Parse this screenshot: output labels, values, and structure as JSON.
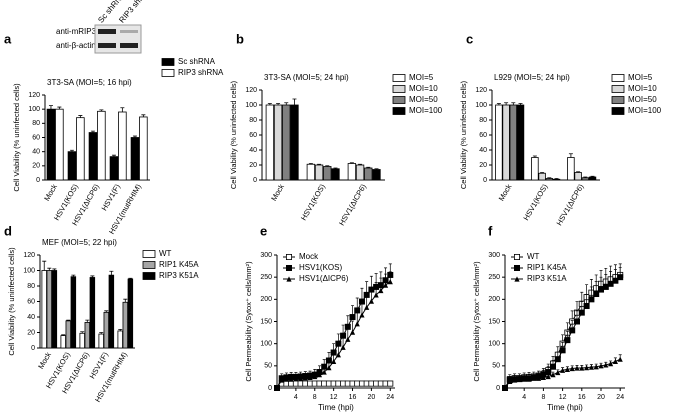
{
  "chart_data": [
    {
      "type": "bar",
      "label": "a",
      "annotation": "3T3-SA (MOI=5; 16 hpi)",
      "ylabel": "Cell Viability (% uninfected cells)",
      "blot": {
        "lanes": [
          "Sc shRNA",
          "RIP3 shRNA"
        ],
        "rows": [
          "anti-mRIP3",
          "anti-β-actin"
        ]
      },
      "categories": [
        "Mock",
        "HSV1(KOS)",
        "HSV1(ΔICP6)",
        "HSV1(F)",
        "HSV1(mutRHIM)"
      ],
      "series": [
        {
          "name": "Sc shRNA",
          "color": "#000000",
          "values": [
            100,
            40,
            67,
            33,
            60
          ],
          "errors": [
            5,
            2,
            2,
            2,
            2
          ]
        },
        {
          "name": "RIP3 shRNA",
          "color": "#ffffff",
          "values": [
            100,
            88,
            97,
            96,
            89
          ],
          "errors": [
            3,
            3,
            2,
            6,
            3
          ]
        }
      ],
      "ylim": [
        0,
        120
      ],
      "yticks": [
        0,
        20,
        40,
        60,
        80,
        100,
        120
      ],
      "legend": "right"
    },
    {
      "type": "bar",
      "label": "b",
      "annotation": "3T3-SA (MOI=5; 24 hpi)",
      "ylabel": "Cell Viability (% uninfected cells)",
      "categories": [
        "Mock",
        "HSV1(KOS)",
        "HSV1(ΔICP6)"
      ],
      "series": [
        {
          "name": "MOI=5",
          "color": "#ffffff",
          "values": [
            100,
            21,
            22
          ],
          "errors": [
            2,
            1,
            1
          ]
        },
        {
          "name": "MOI=10",
          "color": "#d9d9d9",
          "values": [
            100,
            20,
            20
          ],
          "errors": [
            2,
            1,
            1
          ]
        },
        {
          "name": "MOI=50",
          "color": "#808080",
          "values": [
            100,
            18,
            16
          ],
          "errors": [
            3,
            1,
            1
          ]
        },
        {
          "name": "MOI=100",
          "color": "#000000",
          "values": [
            100,
            15,
            14
          ],
          "errors": [
            8,
            1,
            1
          ]
        }
      ],
      "ylim": [
        0,
        120
      ],
      "yticks": [
        0,
        20,
        40,
        60,
        80,
        100,
        120
      ],
      "legend": "right"
    },
    {
      "type": "bar",
      "label": "c",
      "annotation": "L929 (MOI=5; 24 hpi)",
      "ylabel": "Cell Viability (% uninfected cells)",
      "categories": [
        "Mock",
        "HSV1(KOS)",
        "HSV1(ΔICP6)"
      ],
      "series": [
        {
          "name": "MOI=5",
          "color": "#ffffff",
          "values": [
            100,
            30,
            30
          ],
          "errors": [
            2,
            2,
            5
          ]
        },
        {
          "name": "MOI=10",
          "color": "#d9d9d9",
          "values": [
            100,
            9,
            10
          ],
          "errors": [
            3,
            1,
            1
          ]
        },
        {
          "name": "MOI=50",
          "color": "#808080",
          "values": [
            100,
            2,
            3
          ],
          "errors": [
            3,
            1,
            1
          ]
        },
        {
          "name": "MOI=100",
          "color": "#000000",
          "values": [
            100,
            1,
            4
          ],
          "errors": [
            2,
            1,
            1
          ]
        }
      ],
      "ylim": [
        0,
        120
      ],
      "yticks": [
        0,
        20,
        40,
        60,
        80,
        100,
        120
      ],
      "legend": "right"
    },
    {
      "type": "bar",
      "label": "d",
      "annotation": "MEF (MOI=5; 22 hpi)",
      "ylabel": "Cell Viability (% uninfected cells)",
      "categories": [
        "Mock",
        "HSV1(KOS)",
        "HSV1(ΔICP6)",
        "HSV1(F)",
        "HSV1(mutRHIM)"
      ],
      "series": [
        {
          "name": "WT",
          "color": "#ffffff",
          "values": [
            100,
            16,
            19,
            18,
            22
          ],
          "errors": [
            12,
            1,
            2,
            2,
            2
          ]
        },
        {
          "name": "RIP1 K45A",
          "color": "#a6a6a6",
          "values": [
            100,
            35,
            33,
            46,
            59
          ],
          "errors": [
            3,
            1,
            3,
            2,
            4
          ]
        },
        {
          "name": "RIP3 K51A",
          "color": "#000000",
          "values": [
            100,
            92,
            91,
            94,
            89
          ],
          "errors": [
            2,
            2,
            2,
            5,
            1
          ]
        }
      ],
      "ylim": [
        0,
        120
      ],
      "yticks": [
        0,
        20,
        40,
        60,
        80,
        100,
        120
      ],
      "legend": "right"
    },
    {
      "type": "line",
      "label": "e",
      "ylabel": "Cell Permeability (Sytox⁺ cells/mm²)",
      "xlabel": "Time (hpi)",
      "x": [
        0,
        1,
        2,
        3,
        4,
        5,
        6,
        7,
        8,
        9,
        10,
        11,
        12,
        13,
        14,
        15,
        16,
        17,
        18,
        19,
        20,
        21,
        22,
        23,
        24
      ],
      "series": [
        {
          "name": "Mock",
          "color": "#000000",
          "marker": "square-open",
          "values": [
            0,
            10,
            10,
            10,
            10,
            10,
            10,
            10,
            10,
            10,
            10,
            10,
            10,
            10,
            10,
            10,
            10,
            10,
            10,
            10,
            10,
            10,
            10,
            10,
            10
          ],
          "errors": [
            0,
            5,
            5,
            5,
            5,
            5,
            5,
            5,
            5,
            5,
            5,
            5,
            5,
            5,
            5,
            5,
            5,
            5,
            5,
            5,
            5,
            5,
            5,
            5,
            5
          ]
        },
        {
          "name": "HSV1(KOS)",
          "color": "#000000",
          "marker": "square",
          "values": [
            0,
            22,
            24,
            25,
            25,
            26,
            27,
            28,
            30,
            36,
            48,
            62,
            80,
            100,
            118,
            138,
            160,
            175,
            195,
            210,
            222,
            228,
            232,
            243,
            255
          ],
          "errors": [
            0,
            10,
            10,
            10,
            10,
            10,
            10,
            10,
            12,
            14,
            16,
            18,
            20,
            22,
            24,
            25,
            26,
            28,
            30,
            30,
            30,
            30,
            30,
            28,
            25
          ]
        },
        {
          "name": "HSV1(ΔICP6)",
          "color": "#000000",
          "marker": "triangle",
          "values": [
            0,
            18,
            20,
            20,
            21,
            22,
            23,
            24,
            26,
            30,
            36,
            46,
            60,
            75,
            92,
            110,
            126,
            145,
            165,
            182,
            196,
            210,
            220,
            232,
            240
          ],
          "errors": [
            0,
            8,
            8,
            8,
            8,
            8,
            8,
            8,
            10,
            12,
            14,
            16,
            18,
            20,
            22,
            24,
            25,
            26,
            28,
            28,
            28,
            28,
            28,
            25,
            22
          ]
        }
      ],
      "xlim": [
        0,
        25
      ],
      "xticks": [
        4,
        8,
        12,
        16,
        20,
        24
      ],
      "ylim": [
        0,
        300
      ],
      "yticks": [
        0,
        50,
        100,
        150,
        200,
        250,
        300
      ],
      "legend": "upper left"
    },
    {
      "type": "line",
      "label": "f",
      "ylabel": "Cell Permeability (Sytox⁺ cells/mm²)",
      "xlabel": "Time (hpi)",
      "x": [
        0,
        1,
        2,
        3,
        4,
        5,
        6,
        7,
        8,
        9,
        10,
        11,
        12,
        13,
        14,
        15,
        16,
        17,
        18,
        19,
        20,
        21,
        22,
        23,
        24
      ],
      "series": [
        {
          "name": "WT",
          "color": "#000000",
          "marker": "square-open",
          "values": [
            0,
            20,
            22,
            22,
            24,
            25,
            26,
            28,
            32,
            40,
            55,
            75,
            100,
            125,
            150,
            170,
            190,
            205,
            215,
            225,
            235,
            240,
            245,
            250,
            255
          ],
          "errors": [
            0,
            10,
            10,
            10,
            10,
            10,
            10,
            10,
            12,
            14,
            16,
            18,
            20,
            22,
            24,
            25,
            26,
            28,
            30,
            30,
            30,
            30,
            30,
            28,
            25
          ]
        },
        {
          "name": "RIP1 K45A",
          "color": "#000000",
          "marker": "square",
          "values": [
            0,
            18,
            20,
            20,
            22,
            22,
            24,
            26,
            30,
            36,
            48,
            65,
            85,
            108,
            130,
            150,
            170,
            185,
            200,
            212,
            222,
            228,
            235,
            242,
            250
          ],
          "errors": [
            0,
            8,
            8,
            8,
            8,
            8,
            8,
            8,
            10,
            12,
            14,
            16,
            18,
            20,
            22,
            24,
            25,
            26,
            28,
            28,
            28,
            28,
            28,
            25,
            22
          ]
        },
        {
          "name": "RIP3 K51A",
          "color": "#000000",
          "marker": "triangle",
          "values": [
            0,
            15,
            18,
            20,
            20,
            20,
            22,
            22,
            24,
            26,
            30,
            35,
            40,
            42,
            44,
            45,
            45,
            46,
            47,
            48,
            50,
            52,
            55,
            60,
            65
          ],
          "errors": [
            0,
            6,
            6,
            6,
            6,
            6,
            6,
            6,
            6,
            6,
            6,
            6,
            6,
            6,
            6,
            6,
            6,
            6,
            6,
            6,
            6,
            6,
            6,
            8,
            10
          ]
        }
      ],
      "xlim": [
        0,
        25
      ],
      "xticks": [
        4,
        8,
        12,
        16,
        20,
        24
      ],
      "ylim": [
        0,
        300
      ],
      "yticks": [
        0,
        50,
        100,
        150,
        200,
        250,
        300
      ],
      "legend": "upper left"
    }
  ]
}
